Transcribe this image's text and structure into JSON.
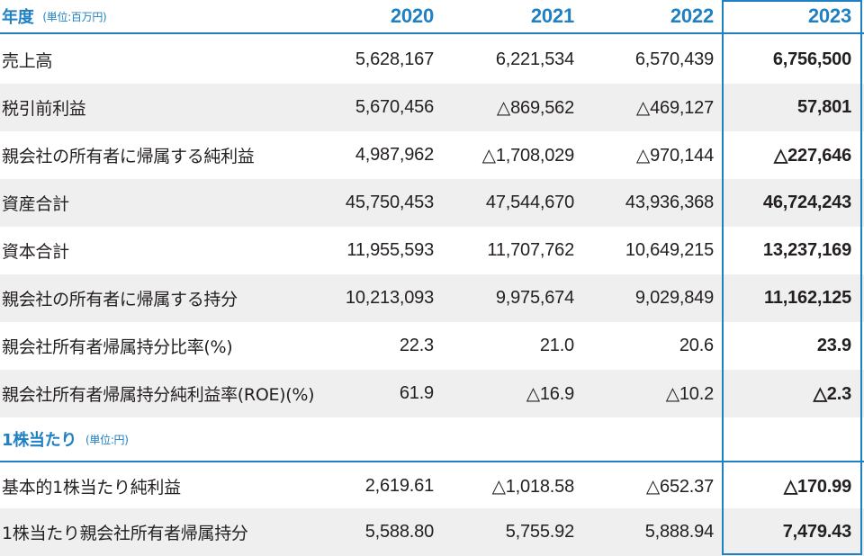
{
  "header": {
    "title": "年度",
    "unit": "(単位:百万円)",
    "years": [
      "2020",
      "2021",
      "2022",
      "2023"
    ]
  },
  "rows": [
    {
      "label": "売上高",
      "values": [
        "5,628,167",
        "6,221,534",
        "6,570,439",
        "6,756,500"
      ]
    },
    {
      "label": "税引前利益",
      "values": [
        "5,670,456",
        "△869,562",
        "△469,127",
        "57,801"
      ]
    },
    {
      "label": "親会社の所有者に帰属する純利益",
      "values": [
        "4,987,962",
        "△1,708,029",
        "△970,144",
        "△227,646"
      ]
    },
    {
      "label": "資産合計",
      "values": [
        "45,750,453",
        "47,544,670",
        "43,936,368",
        "46,724,243"
      ]
    },
    {
      "label": "資本合計",
      "values": [
        "11,955,593",
        "11,707,762",
        "10,649,215",
        "13,237,169"
      ]
    },
    {
      "label": "親会社の所有者に帰属する持分",
      "values": [
        "10,213,093",
        "9,975,674",
        "9,029,849",
        "11,162,125"
      ]
    },
    {
      "label": "親会社所有者帰属持分比率(%)",
      "values": [
        "22.3",
        "21.0",
        "20.6",
        "23.9"
      ]
    },
    {
      "label": "親会社所有者帰属持分純利益率(ROE)(%)",
      "values": [
        "61.9",
        "△16.9",
        "△10.2",
        "△2.3"
      ]
    }
  ],
  "per_share": {
    "title": "1株当たり",
    "unit": "(単位:円)",
    "rows": [
      {
        "label": "基本的1株当たり純利益",
        "values": [
          "2,619.61",
          "△1,018.58",
          "△652.37",
          "△170.99"
        ]
      },
      {
        "label": "1株当たり親会社所有者帰属持分",
        "values": [
          "5,588.80",
          "5,755.92",
          "5,888.94",
          "7,479.43"
        ]
      }
    ]
  },
  "colors": {
    "accent": "#1f80c3",
    "row_shade": "#efefef",
    "text": "#231f20"
  }
}
